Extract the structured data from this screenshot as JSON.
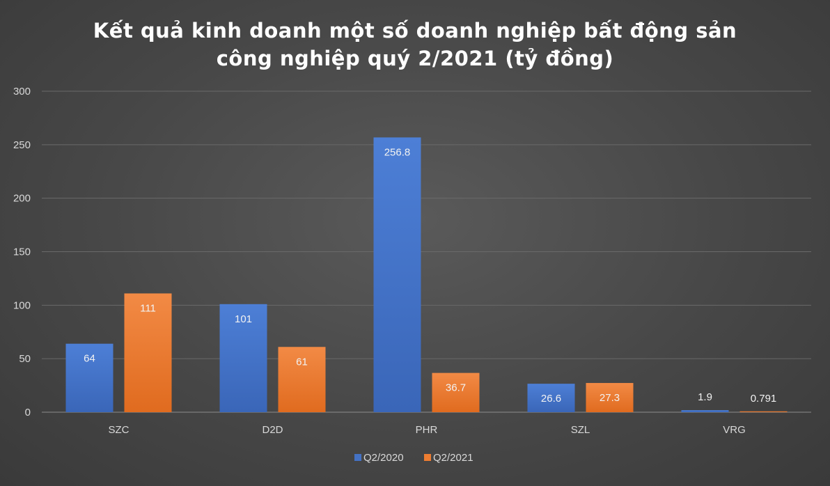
{
  "chart_data": {
    "type": "bar",
    "title_lines": [
      "Kết quả kinh doanh một số doanh nghiệp bất động sản",
      "công nghiệp quý 2/2021 (tỷ đồng)"
    ],
    "categories": [
      "SZC",
      "D2D",
      "PHR",
      "SZL",
      "VRG"
    ],
    "series": [
      {
        "name": "Q2/2020",
        "values": [
          64,
          101,
          256.8,
          26.6,
          1.9
        ],
        "labels": [
          "64",
          "101",
          "256.8",
          "26.6",
          "1.9"
        ],
        "color": "#4472c4"
      },
      {
        "name": "Q2/2021",
        "values": [
          111,
          61,
          36.7,
          27.3,
          0.791
        ],
        "labels": [
          "111",
          "61",
          "36.7",
          "27.3",
          "0.791"
        ],
        "color": "#ed7d31"
      }
    ],
    "ylim": [
      0,
      300
    ],
    "yticks": [
      0,
      50,
      100,
      150,
      200,
      250,
      300
    ],
    "grid": true,
    "legend": "bottom",
    "xlabel": "",
    "ylabel": ""
  }
}
